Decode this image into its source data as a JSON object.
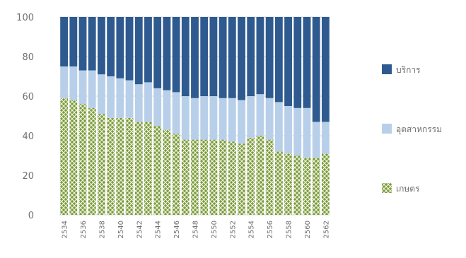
{
  "chart_data": {
    "type": "bar",
    "stacked": true,
    "categories": [
      "2534",
      "2535",
      "2536",
      "2537",
      "2538",
      "2539",
      "2540",
      "2541",
      "2542",
      "2543",
      "2544",
      "2545",
      "2546",
      "2547",
      "2548",
      "2549",
      "2550",
      "2551",
      "2552",
      "2553",
      "2554",
      "2555",
      "2556",
      "2557",
      "2558",
      "2559",
      "2560",
      "2561",
      "2562"
    ],
    "x_tick_labels": [
      "2534",
      "2536",
      "2538",
      "2540",
      "2542",
      "2544",
      "2546",
      "2548",
      "2550",
      "2552",
      "2554",
      "2556",
      "2558",
      "2560",
      "2562"
    ],
    "series": [
      {
        "name": "เกษตร",
        "pattern": "green-lattice",
        "color": "#7a9a3c",
        "values": [
          59,
          58,
          56,
          54,
          51,
          49,
          49,
          49,
          47,
          47,
          45,
          43,
          41,
          38,
          38,
          38,
          38,
          38,
          37,
          36,
          39,
          40,
          38,
          32,
          31,
          30,
          29,
          29,
          31
        ]
      },
      {
        "name": "อุตสาหกรรม",
        "color": "#b8cfe9",
        "values": [
          16,
          17,
          17,
          19,
          20,
          21,
          20,
          19,
          19,
          20,
          19,
          20,
          21,
          22,
          21,
          22,
          22,
          21,
          22,
          22,
          21,
          21,
          21,
          25,
          24,
          24,
          25,
          18,
          16
        ]
      },
      {
        "name": "บริการ",
        "color": "#2e5a8f",
        "values": [
          25,
          25,
          27,
          27,
          29,
          30,
          31,
          32,
          34,
          33,
          36,
          37,
          38,
          40,
          41,
          40,
          40,
          41,
          41,
          42,
          40,
          39,
          41,
          43,
          45,
          46,
          46,
          53,
          53
        ]
      }
    ],
    "xlabel": "",
    "ylabel": "",
    "ylim": [
      0,
      100
    ],
    "y_ticks": [
      "0",
      "20",
      "40",
      "60",
      "80",
      "100"
    ],
    "grid": true,
    "legend_position": "right"
  }
}
